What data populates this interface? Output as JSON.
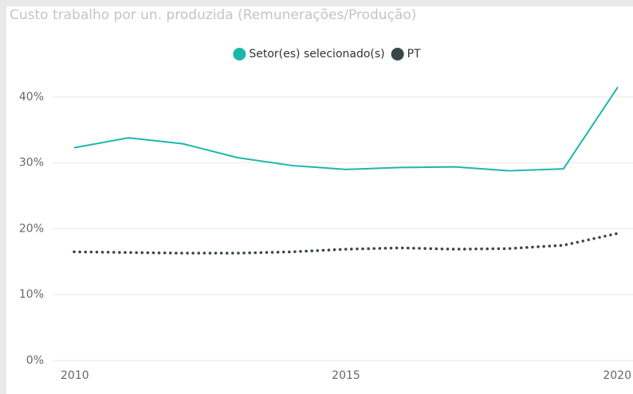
{
  "chart_data": {
    "type": "line",
    "title": "Custo trabalho por un. produzida (Remunerações/Produção)",
    "x": [
      2010,
      2011,
      2012,
      2013,
      2014,
      2015,
      2016,
      2017,
      2018,
      2019,
      2020
    ],
    "series": [
      {
        "name": "Setor(es) selecionado(s)",
        "color": "#1ab8aa",
        "style": "solid",
        "values": [
          32.3,
          33.8,
          32.9,
          30.8,
          29.6,
          29.0,
          29.3,
          29.4,
          28.8,
          29.1,
          41.5
        ]
      },
      {
        "name": "PT",
        "color": "#374649",
        "style": "dotted",
        "values": [
          16.5,
          16.4,
          16.3,
          16.3,
          16.5,
          16.9,
          17.1,
          16.9,
          17.0,
          17.5,
          19.3
        ]
      }
    ],
    "xlim": [
      2010,
      2020
    ],
    "xticks": [
      2010,
      2015,
      2020
    ],
    "ylim": [
      0,
      43
    ],
    "yticks": [
      {
        "value": 0,
        "label": "0%"
      },
      {
        "value": 10,
        "label": "10%"
      },
      {
        "value": 20,
        "label": "20%"
      },
      {
        "value": 30,
        "label": "30%"
      },
      {
        "value": 40,
        "label": "40%"
      }
    ],
    "grid": true,
    "legend": "top"
  }
}
